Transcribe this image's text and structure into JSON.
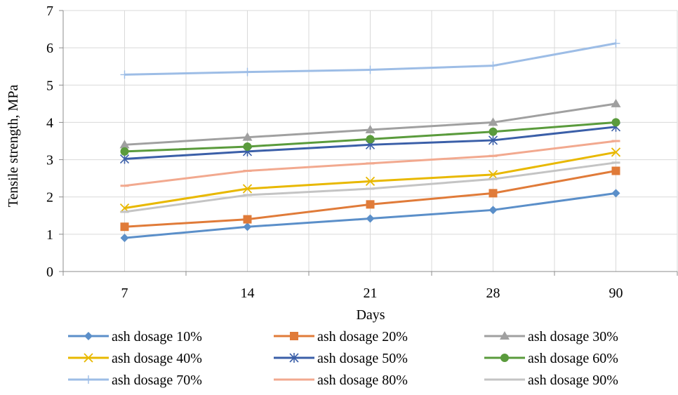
{
  "chart_data": {
    "type": "line",
    "categories": [
      "7",
      "14",
      "21",
      "28",
      "90"
    ],
    "xlabel": "Days",
    "ylabel": "Tensile strength, MPa",
    "ylim": [
      0,
      7
    ],
    "yticks": [
      "0",
      "1",
      "2",
      "3",
      "4",
      "5",
      "6",
      "7"
    ],
    "grid": true,
    "legend_position": "bottom",
    "series": [
      {
        "name": "ash dosage 10%",
        "values": [
          0.9,
          1.2,
          1.42,
          1.65,
          2.1
        ],
        "color": "#5b8fc9",
        "marker": "diamond"
      },
      {
        "name": "ash dosage 20%",
        "values": [
          1.2,
          1.4,
          1.8,
          2.1,
          2.7
        ],
        "color": "#e07b39",
        "marker": "square"
      },
      {
        "name": "ash dosage 30%",
        "values": [
          3.4,
          3.6,
          3.8,
          4.0,
          4.5
        ],
        "color": "#a0a0a0",
        "marker": "triangle"
      },
      {
        "name": "ash dosage 40%",
        "values": [
          1.7,
          2.22,
          2.42,
          2.6,
          3.2
        ],
        "color": "#e8b800",
        "marker": "x"
      },
      {
        "name": "ash dosage 50%",
        "values": [
          3.02,
          3.22,
          3.4,
          3.52,
          3.88
        ],
        "color": "#3b5fa8",
        "marker": "star"
      },
      {
        "name": "ash dosage 60%",
        "values": [
          3.22,
          3.35,
          3.55,
          3.75,
          4.0
        ],
        "color": "#5a9b3c",
        "marker": "circle"
      },
      {
        "name": "ash dosage 70%",
        "values": [
          5.28,
          5.35,
          5.41,
          5.52,
          6.12
        ],
        "color": "#9dbde6",
        "marker": "plus"
      },
      {
        "name": "ash dosage 80%",
        "values": [
          2.3,
          2.7,
          2.9,
          3.1,
          3.5
        ],
        "color": "#f2a98f",
        "marker": "dash"
      },
      {
        "name": "ash dosage 90%",
        "values": [
          1.6,
          2.05,
          2.22,
          2.48,
          2.92
        ],
        "color": "#c4c4c4",
        "marker": "dash"
      }
    ]
  }
}
